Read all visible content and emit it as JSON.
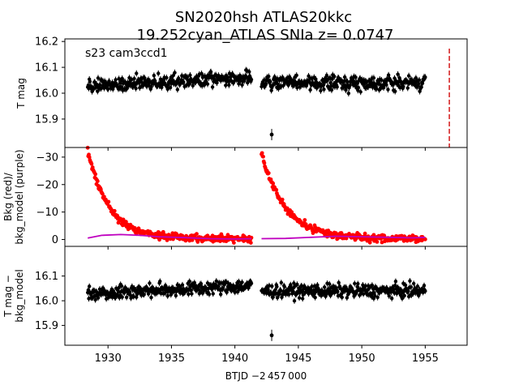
{
  "chart_data": {
    "type": "scatter",
    "title_line1": "SN2020hsh  ATLAS20kkc",
    "title_line2": "19.252cyan_ATLAS SNIa z= 0.0747",
    "annotation": "s23 cam3ccd1",
    "xlabel": "BTJD −2 457 000",
    "xlim": [
      1926.6,
      1958.3
    ],
    "xticks": [
      1930,
      1935,
      1940,
      1945,
      1950,
      1955
    ],
    "xtick_labels": [
      "1930",
      "1935",
      "1940",
      "1945",
      "1950",
      "1955"
    ],
    "gap": [
      1941.4,
      1942.0
    ],
    "vline": {
      "x": 1956.9,
      "color": "#d62728",
      "style": "dashed"
    },
    "panels": [
      {
        "name": "top",
        "ylabel": "T mag",
        "ylim": [
          16.21,
          15.79
        ],
        "inverted": true,
        "yticks": [
          15.9,
          16.0,
          16.1,
          16.2
        ],
        "ytick_labels": [
          "15.9",
          "16.0",
          "16.1",
          "16.2"
        ],
        "series": [
          {
            "color": "#000000",
            "style": "errorbar",
            "segments": [
              {
                "x0": 1928.4,
                "x1": 1941.3,
                "start_level": 16.03,
                "end_level": 16.06,
                "scatter": 0.035
              },
              {
                "x0": 1942.1,
                "x1": 1955.0,
                "start_level": 16.04,
                "end_level": 16.04,
                "scatter": 0.035
              }
            ],
            "highlight": {
              "x": 1942.9,
              "y": 15.84
            }
          }
        ]
      },
      {
        "name": "middle",
        "ylabel": "Bkg (red)/\nbkg_model (purple)",
        "ylim": [
          -33.5,
          2.5
        ],
        "inverted": false,
        "yticks": [
          0,
          -10,
          -20,
          -30
        ],
        "ytick_labels": [
          "0",
          "−10",
          "−20",
          "−30"
        ],
        "series": [
          {
            "color": "#ff0000",
            "style": "points",
            "segments": [
              {
                "x0": 1928.4,
                "x1": 1941.3,
                "start_level": -31.0,
                "recovery": "log"
              },
              {
                "x0": 1942.1,
                "x1": 1955.0,
                "start_level": -30.0,
                "recovery": "log"
              }
            ]
          },
          {
            "color": "#bf00bf",
            "style": "line",
            "points": [
              [
                1928.4,
                -0.5
              ],
              [
                1929.5,
                -1.5
              ],
              [
                1931.0,
                -1.8
              ],
              [
                1932.5,
                -1.5
              ],
              [
                1934.0,
                -1.0
              ],
              [
                1936.0,
                -0.7
              ],
              [
                1938.0,
                -0.3
              ],
              [
                1940.0,
                -0.2
              ],
              [
                1941.3,
                -0.3
              ],
              [
                1942.1,
                -0.3
              ],
              [
                1944.0,
                -0.4
              ],
              [
                1946.0,
                -0.8
              ],
              [
                1948.0,
                -1.2
              ],
              [
                1950.0,
                -1.0
              ],
              [
                1952.0,
                -0.8
              ],
              [
                1954.0,
                -0.6
              ],
              [
                1955.0,
                -0.8
              ]
            ]
          }
        ]
      },
      {
        "name": "bottom",
        "ylabel": "T mag −\nbkg_model",
        "ylim": [
          16.22,
          15.82
        ],
        "inverted": true,
        "yticks": [
          15.9,
          16.0,
          16.1
        ],
        "ytick_labels": [
          "15.9",
          "16.0",
          "16.1"
        ],
        "series": [
          {
            "color": "#000000",
            "style": "errorbar",
            "segments": [
              {
                "x0": 1928.4,
                "x1": 1941.3,
                "start_level": 16.03,
                "end_level": 16.06,
                "scatter": 0.035
              },
              {
                "x0": 1942.1,
                "x1": 1955.0,
                "start_level": 16.04,
                "end_level": 16.04,
                "scatter": 0.035
              }
            ],
            "highlight": {
              "x": 1942.9,
              "y": 15.86
            }
          }
        ]
      }
    ]
  }
}
